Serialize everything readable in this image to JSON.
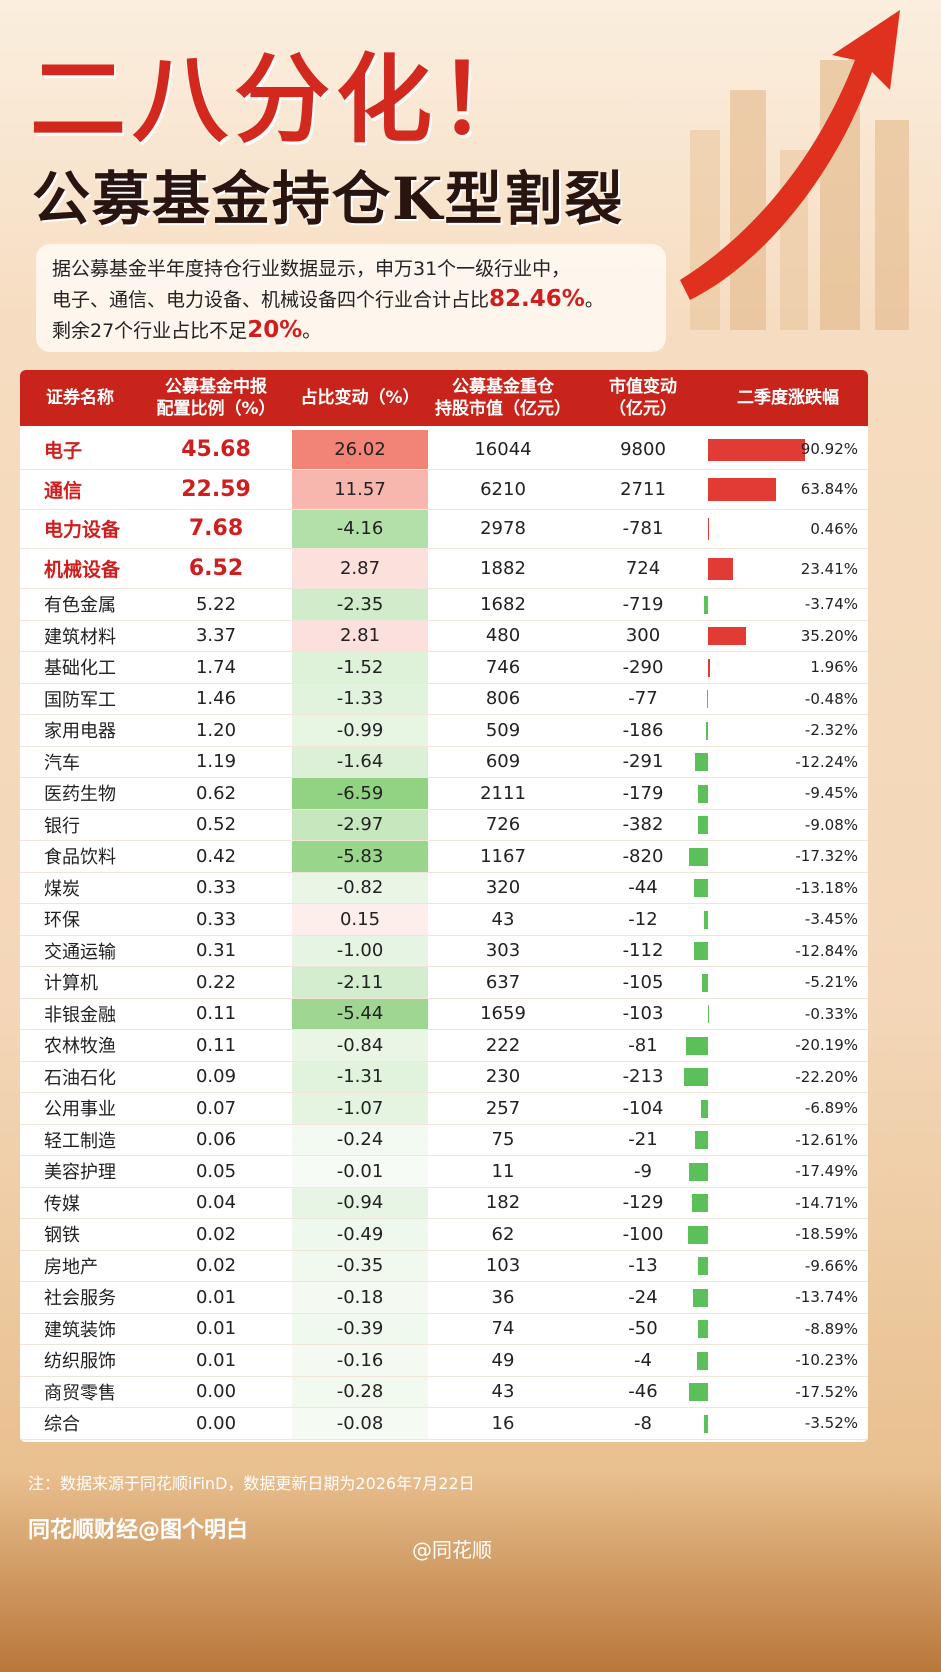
{
  "header": {
    "title": "二八分化！",
    "subtitle": "公募基金持仓K型割裂"
  },
  "intro": [
    [
      "据公募基金半年度持仓行业数据显示，申万31个一级行业中，"
    ],
    [
      "电子、通信、电力设备、机械设备四个行业合计占比",
      "82.46%",
      "。"
    ],
    [
      "剩余27个行业占比不足",
      "20%",
      "。"
    ]
  ],
  "table": {
    "headers": [
      [
        "证券名称"
      ],
      [
        "公募基金中报",
        "配置比例（%）"
      ],
      [
        "占比变动（%）"
      ],
      [
        "公募基金重仓",
        "持股市值（亿元）"
      ],
      [
        "市值变动",
        "（亿元）"
      ],
      [
        "二季度涨跌幅"
      ]
    ],
    "rows": [
      [
        "电子",
        "45.68",
        26.02,
        "16044",
        "9800",
        {
          "value": 90.92,
          "label": "90.92%"
        }
      ],
      [
        "通信",
        "22.59",
        11.57,
        "6210",
        "2711",
        {
          "value": 63.84,
          "label": "63.84%"
        }
      ],
      [
        "电力设备",
        "7.68",
        -4.16,
        "2978",
        "-781",
        {
          "value": 0.46,
          "label": "0.46%"
        }
      ],
      [
        "机械设备",
        "6.52",
        2.87,
        "1882",
        "724",
        {
          "value": 23.41,
          "label": "23.41%"
        }
      ],
      [
        "有色金属",
        "5.22",
        -2.35,
        "1682",
        "-719",
        {
          "value": -3.74,
          "label": "-3.74%"
        }
      ],
      [
        "建筑材料",
        "3.37",
        2.81,
        "480",
        "300",
        {
          "value": 35.2,
          "label": "35.20%"
        }
      ],
      [
        "基础化工",
        "1.74",
        -1.52,
        "746",
        "-290",
        {
          "value": 1.96,
          "label": "1.96%"
        }
      ],
      [
        "国防军工",
        "1.46",
        -1.33,
        "806",
        "-77",
        {
          "value": -0.48,
          "label": "-0.48%"
        }
      ],
      [
        "家用电器",
        "1.20",
        -0.99,
        "509",
        "-186",
        {
          "value": -2.32,
          "label": "-2.32%"
        }
      ],
      [
        "汽车",
        "1.19",
        -1.64,
        "609",
        "-291",
        {
          "value": -12.24,
          "label": "-12.24%"
        }
      ],
      [
        "医药生物",
        "0.62",
        -6.59,
        "2111",
        "-179",
        {
          "value": -9.45,
          "label": "-9.45%"
        }
      ],
      [
        "银行",
        "0.52",
        -2.97,
        "726",
        "-382",
        {
          "value": -9.08,
          "label": "-9.08%"
        }
      ],
      [
        "食品饮料",
        "0.42",
        -5.83,
        "1167",
        "-820",
        {
          "value": -17.32,
          "label": "-17.32%"
        }
      ],
      [
        "煤炭",
        "0.33",
        -0.82,
        "320",
        "-44",
        {
          "value": -13.18,
          "label": "-13.18%"
        }
      ],
      [
        "环保",
        "0.33",
        0.15,
        "43",
        "-12",
        {
          "value": -3.45,
          "label": "-3.45%"
        }
      ],
      [
        "交通运输",
        "0.31",
        {
          "value": -1,
          "label": "-1.00"
        },
        "303",
        "-112",
        {
          "value": -12.84,
          "label": "-12.84%"
        }
      ],
      [
        "计算机",
        "0.22",
        -2.11,
        "637",
        "-105",
        {
          "value": -5.21,
          "label": "-5.21%"
        }
      ],
      [
        "非银金融",
        "0.11",
        -5.44,
        "1659",
        "-103",
        {
          "value": -0.33,
          "label": "-0.33%"
        }
      ],
      [
        "农林牧渔",
        "0.11",
        -0.84,
        "222",
        "-81",
        {
          "value": -20.19,
          "label": "-20.19%"
        }
      ],
      [
        "石油石化",
        "0.09",
        -1.31,
        "230",
        "-213",
        {
          "value": -22.2,
          "label": "-22.20%"
        }
      ],
      [
        "公用事业",
        "0.07",
        -1.07,
        "257",
        "-104",
        {
          "value": -6.89,
          "label": "-6.89%"
        }
      ],
      [
        "轻工制造",
        "0.06",
        -0.24,
        "75",
        "-21",
        {
          "value": -12.61,
          "label": "-12.61%"
        }
      ],
      [
        "美容护理",
        "0.05",
        -0.01,
        "11",
        "-9",
        {
          "value": -17.49,
          "label": "-17.49%"
        }
      ],
      [
        "传媒",
        "0.04",
        -0.94,
        "182",
        "-129",
        {
          "value": -14.71,
          "label": "-14.71%"
        }
      ],
      [
        "钢铁",
        "0.02",
        -0.49,
        "62",
        "-100",
        {
          "value": -18.59,
          "label": "-18.59%"
        }
      ],
      [
        "房地产",
        "0.02",
        -0.35,
        "103",
        "-13",
        {
          "value": -9.66,
          "label": "-9.66%"
        }
      ],
      [
        "社会服务",
        "0.01",
        -0.18,
        "36",
        "-24",
        {
          "value": -13.74,
          "label": "-13.74%"
        }
      ],
      [
        "建筑装饰",
        "0.01",
        -0.39,
        "74",
        "-50",
        {
          "value": -8.89,
          "label": "-8.89%"
        }
      ],
      [
        "纺织服饰",
        "0.01",
        -0.16,
        "49",
        "-4",
        {
          "value": -10.23,
          "label": "-10.23%"
        }
      ],
      [
        "商贸零售",
        "0.00",
        -0.28,
        "43",
        "-46",
        {
          "value": -17.52,
          "label": "-17.52%"
        }
      ],
      [
        "综合",
        "0.00",
        -0.08,
        "16",
        "-8",
        {
          "value": -3.52,
          "label": "-3.52%"
        }
      ]
    ]
  },
  "footer": {
    "note": "注：数据来源于同花顺iFinD，数据更新日期为2026年7月22日",
    "brand": "同花顺财经@图个明白",
    "watermark": "@同花顺"
  }
}
